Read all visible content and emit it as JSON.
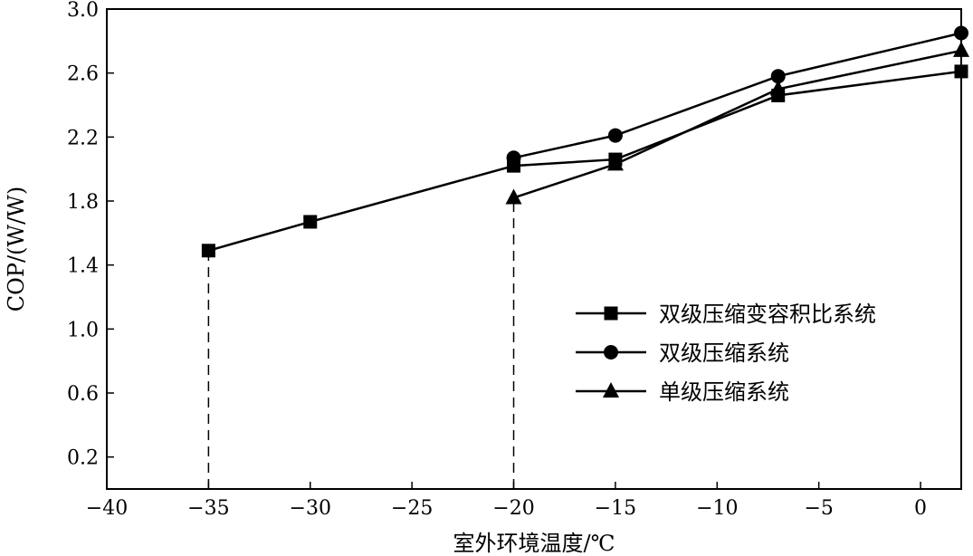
{
  "chart_data": {
    "type": "line",
    "xlabel": "室外环境温度/℃",
    "ylabel": "COP/(W/W)",
    "xlim": [
      -40,
      2
    ],
    "ylim": [
      0,
      3.0
    ],
    "x_ticks": [
      -40,
      -35,
      -30,
      -25,
      -20,
      -15,
      -10,
      -5,
      0
    ],
    "x_tick_labels": [
      "−40",
      "−35",
      "−30",
      "−25",
      "−20",
      "−15",
      "−10",
      "−5",
      "0"
    ],
    "y_ticks": [
      0.2,
      0.6,
      1.0,
      1.4,
      1.8,
      2.2,
      2.6,
      3.0
    ],
    "y_tick_labels": [
      "0.2",
      "0.6",
      "1.0",
      "1.4",
      "1.8",
      "2.2",
      "2.6",
      "3.0"
    ],
    "grid": false,
    "legend_position": "right",
    "series": [
      {
        "name": "双级压缩变容积比系统",
        "marker": "square",
        "x": [
          -35,
          -30,
          -20,
          -15,
          -7,
          2
        ],
        "y": [
          1.49,
          1.67,
          2.02,
          2.06,
          2.46,
          2.61
        ]
      },
      {
        "name": "双级压缩系统",
        "marker": "circle",
        "x": [
          -20,
          -15,
          -7,
          2
        ],
        "y": [
          2.07,
          2.21,
          2.58,
          2.85
        ]
      },
      {
        "name": "单级压缩系统",
        "marker": "triangle",
        "x": [
          -20,
          -15,
          -7,
          2
        ],
        "y": [
          1.82,
          2.03,
          2.5,
          2.74
        ]
      }
    ],
    "reference_lines": [
      {
        "x": -35,
        "y_top": 1.49
      },
      {
        "x": -20,
        "y_top": 1.82
      }
    ]
  }
}
